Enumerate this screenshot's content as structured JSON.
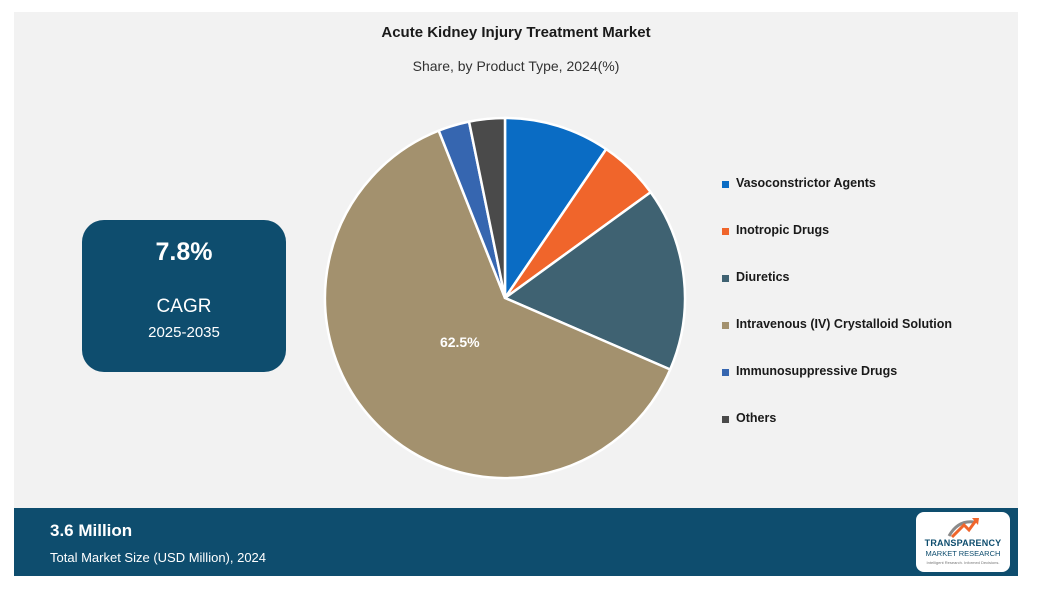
{
  "chart_data": {
    "type": "pie",
    "title": "Acute Kidney Injury Treatment Market",
    "subtitle": "Share, by Product Type, 2024(%)",
    "categories": [
      "Vasoconstrictor Agents",
      "Inotropic Drugs",
      "Diuretics",
      "Intravenous (IV) Crystalloid Solution",
      "Immunosuppressive Drugs",
      "Others"
    ],
    "values": [
      9.5,
      5.5,
      16.5,
      62.5,
      2.8,
      3.2
    ],
    "colors": [
      "#0a6cc4",
      "#f0652b",
      "#3f6272",
      "#a3916e",
      "#3666b0",
      "#4a4a4a"
    ],
    "data_labels": {
      "3": "62.5%"
    },
    "legend_position": "right"
  },
  "cagr": {
    "value": "7.8%",
    "label": "CAGR",
    "years": "2025-2035"
  },
  "footer": {
    "value": "3.6 Million",
    "label": "Total Market Size (USD Million), 2024"
  },
  "logo": {
    "line1": "TRANSPARENCY",
    "line2": "MARKET RESEARCH",
    "tagline": "Intelligent Research. Informed Decisions."
  }
}
